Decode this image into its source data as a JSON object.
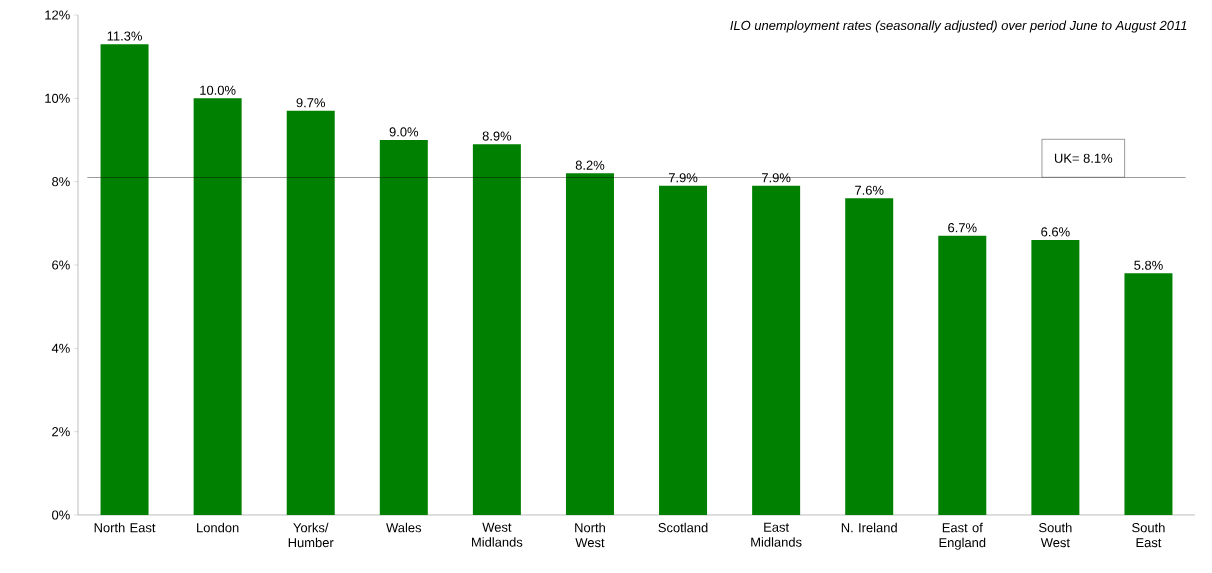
{
  "chart_data": {
    "type": "bar",
    "title": "ILO unemployment rates (seasonally adjusted) over period June to August 2011",
    "categories": [
      "North East",
      "London",
      "Yorks/ Humber",
      "Wales",
      "West Midlands",
      "North West",
      "Scotland",
      "East Midlands",
      "N. Ireland",
      "East of England",
      "South West",
      "South East"
    ],
    "values": [
      11.3,
      10.0,
      9.7,
      9.0,
      8.9,
      8.2,
      7.9,
      7.9,
      7.6,
      6.7,
      6.6,
      5.8
    ],
    "value_labels": [
      "11.3%",
      "10.0%",
      "9.7%",
      "9.0%",
      "8.9%",
      "8.2%",
      "7.9%",
      "7.9%",
      "7.6%",
      "6.7%",
      "6.6%",
      "5.8%"
    ],
    "color": "#008000",
    "ylim": [
      0,
      12
    ],
    "yticks": [
      {
        "value": 0,
        "label": "0%"
      },
      {
        "value": 2,
        "label": "2%"
      },
      {
        "value": 4,
        "label": "4%"
      },
      {
        "value": 6,
        "label": "6%"
      },
      {
        "value": 8,
        "label": "8%"
      },
      {
        "value": 10,
        "label": "10%"
      },
      {
        "value": 12,
        "label": "12%"
      }
    ],
    "ref_lines": [
      {
        "axis": "y",
        "value": 8.1,
        "label": "UK= 8.1%",
        "color": "#000000"
      }
    ],
    "grid": false
  }
}
